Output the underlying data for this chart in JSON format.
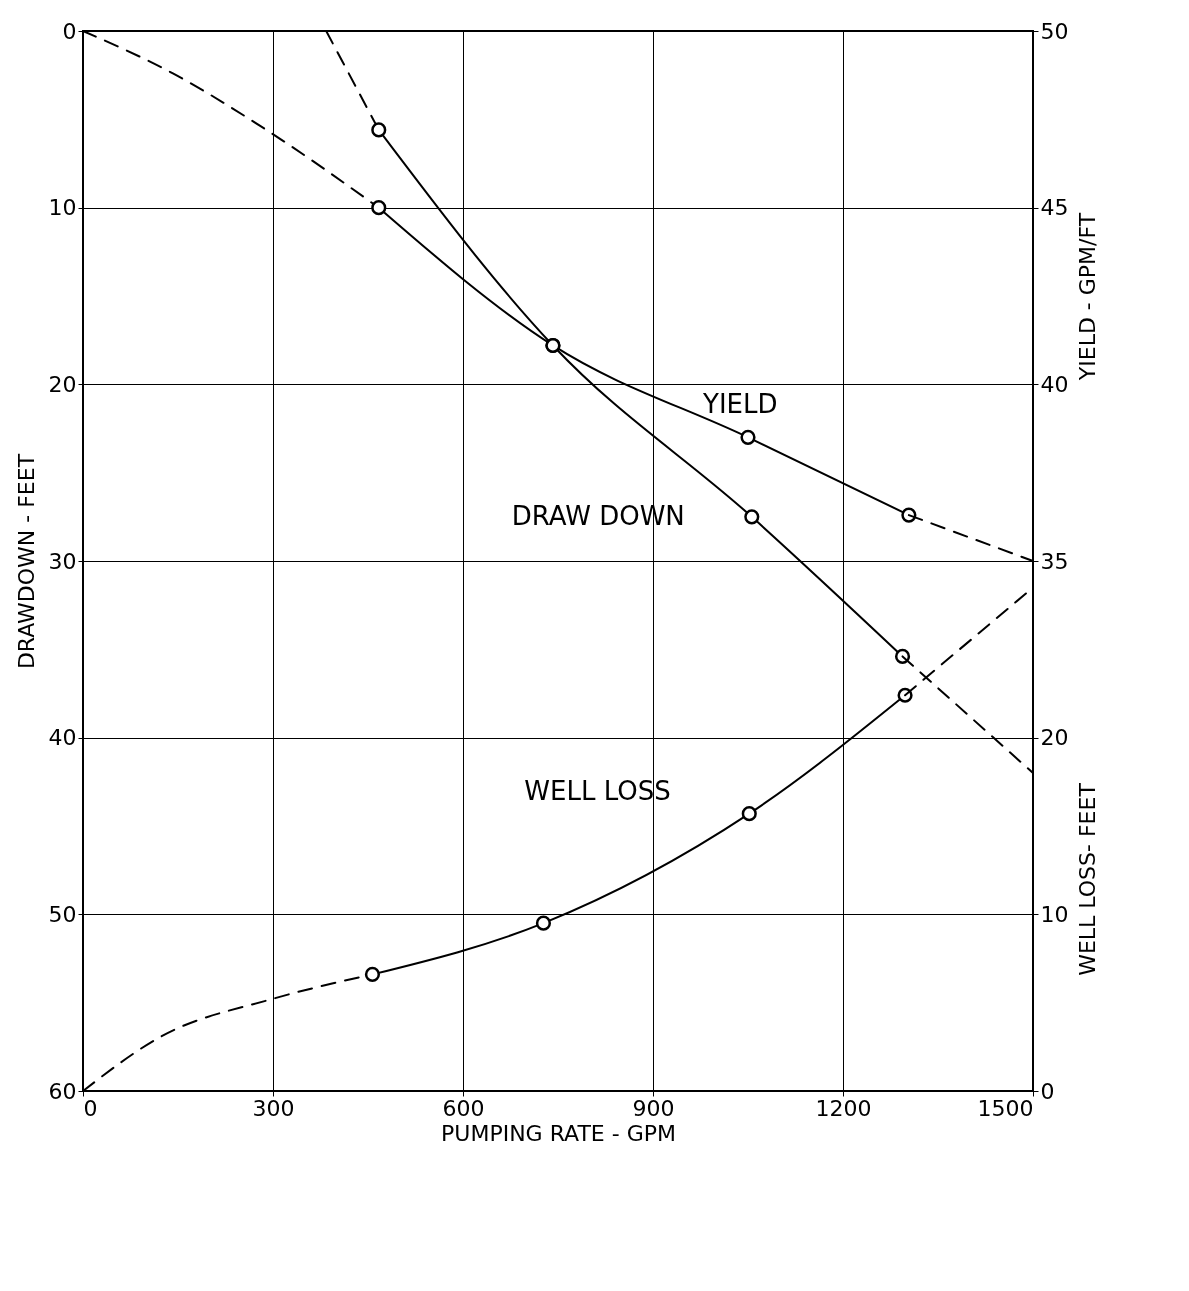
{
  "chart_data": {
    "type": "line",
    "xlabel": "PUMPING RATE - GPM",
    "ylabel": "DRAWDOWN - FEET",
    "y2label": "YIELD - GPM/FT",
    "y3label": "WELL LOSS- FEET",
    "xlim": [
      0,
      1500
    ],
    "xticks": [
      0,
      300,
      600,
      900,
      1200,
      1500
    ],
    "ylim": [
      60,
      0
    ],
    "yticks": [
      0,
      10,
      20,
      30,
      40,
      50,
      60
    ],
    "y2lim": [
      20,
      50
    ],
    "y2ticks": [
      35,
      40,
      45,
      50
    ],
    "y3lim": [
      0,
      60
    ],
    "y3ticks": [
      0,
      10,
      20
    ],
    "grid": true,
    "series": [
      {
        "type": "line",
        "axis": "y",
        "color": "#000000",
        "line_style": "dashed",
        "x": [
          384,
          467
        ],
        "values": [
          0,
          5.6
        ]
      },
      {
        "type": "line",
        "axis": "y",
        "name": "DRAW DOWN",
        "color": "#000000",
        "line_style": "solid",
        "marker": "circle",
        "x": [
          467,
          742,
          1056,
          1294
        ],
        "values": [
          5.6,
          17.8,
          27.5,
          35.4
        ]
      },
      {
        "type": "line",
        "axis": "y",
        "color": "#000000",
        "line_style": "dashed",
        "x": [
          1294,
          1500
        ],
        "values": [
          35.4,
          42.0
        ]
      },
      {
        "type": "line",
        "axis": "y2",
        "color": "#000000",
        "line_style": "dashed",
        "x": [
          0,
          142,
          281,
          467
        ],
        "values": [
          50,
          48.8,
          47.3,
          45.0
        ]
      },
      {
        "type": "line",
        "axis": "y2",
        "name": "YIELD",
        "color": "#000000",
        "line_style": "solid",
        "marker": "circle",
        "x": [
          467,
          742,
          1050,
          1304
        ],
        "values": [
          45.0,
          41.1,
          38.5,
          36.3
        ]
      },
      {
        "type": "line",
        "axis": "y2",
        "color": "#000000",
        "line_style": "dashed",
        "x": [
          1304,
          1500
        ],
        "values": [
          36.3,
          35.0
        ]
      },
      {
        "type": "line",
        "axis": "y3",
        "color": "#000000",
        "line_style": "dashed",
        "x": [
          0,
          124,
          298,
          457
        ],
        "values": [
          0,
          3.1,
          5.2,
          6.6
        ]
      },
      {
        "type": "line",
        "axis": "y3",
        "name": "WELL LOSS",
        "color": "#000000",
        "line_style": "solid",
        "marker": "circle",
        "x": [
          457,
          727,
          1052,
          1298
        ],
        "values": [
          6.6,
          9.5,
          15.7,
          22.4
        ]
      },
      {
        "type": "line",
        "axis": "y3",
        "color": "#000000",
        "line_style": "dashed",
        "x": [
          1298,
          1500
        ],
        "values": [
          22.4,
          28.5
        ]
      }
    ]
  }
}
